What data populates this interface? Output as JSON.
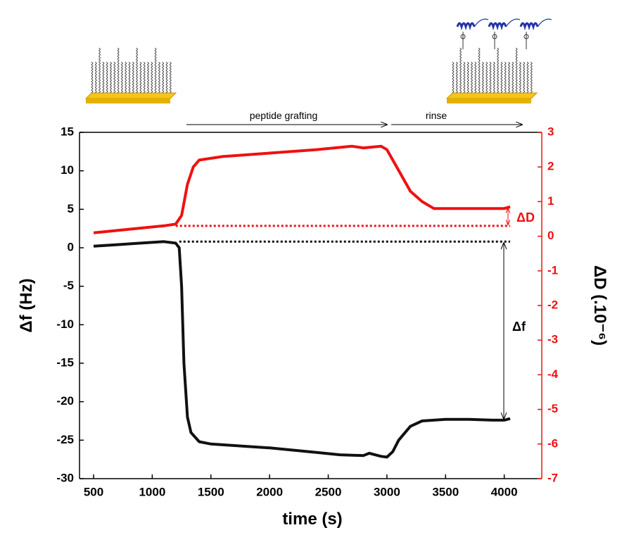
{
  "chart_data": {
    "type": "line",
    "x_label": "time (s)",
    "y_label": "Δf (Hz)",
    "y2_label": "ΔD (.10⁻⁶)",
    "xlim": [
      380,
      4320
    ],
    "xticks": [
      500,
      1000,
      1500,
      2000,
      2500,
      3000,
      3500,
      4000
    ],
    "ylim": [
      -30,
      15
    ],
    "yticks": [
      15,
      10,
      5,
      0,
      -5,
      -10,
      -15,
      -20,
      -25,
      -30
    ],
    "y2lim": [
      -7,
      3
    ],
    "y2ticks": [
      3,
      2,
      1,
      0,
      -1,
      -2,
      -3,
      -4,
      -5,
      -6,
      -7
    ],
    "y2_color": "#ee1111",
    "series": [
      {
        "color": "#111111",
        "x": [
          500,
          700,
          900,
          1100,
          1200,
          1230,
          1250,
          1270,
          1300,
          1330,
          1400,
          1500,
          1800,
          2000,
          2200,
          2400,
          2600,
          2800,
          2850,
          2950,
          3000,
          3050,
          3100,
          3200,
          3300,
          3500,
          3700,
          3900,
          4000,
          4050
        ],
        "values": [
          0.2,
          0.4,
          0.6,
          0.8,
          0.6,
          0,
          -5,
          -15,
          -22,
          -24,
          -25.2,
          -25.5,
          -25.8,
          -26,
          -26.3,
          -26.6,
          -26.9,
          -27,
          -26.7,
          -27.1,
          -27.2,
          -26.5,
          -25,
          -23.2,
          -22.5,
          -22.3,
          -22.3,
          -22.4,
          -22.4,
          -22.2
        ]
      },
      {
        "color": "#ee1111",
        "axis": "y2",
        "x": [
          500,
          800,
          1100,
          1200,
          1250,
          1300,
          1350,
          1400,
          1600,
          2000,
          2400,
          2700,
          2800,
          2950,
          3000,
          3100,
          3200,
          3300,
          3400,
          3600,
          3800,
          4000,
          4050
        ],
        "values": [
          0.1,
          0.2,
          0.3,
          0.35,
          0.6,
          1.5,
          2.0,
          2.2,
          2.3,
          2.4,
          2.5,
          2.6,
          2.55,
          2.6,
          2.5,
          1.9,
          1.3,
          1.0,
          0.8,
          0.8,
          0.8,
          0.8,
          0.85
        ]
      }
    ],
    "hlines": [
      {
        "value": 0.3,
        "axis": "y2",
        "color": "#ee1111",
        "x": [
          1200,
          4050
        ]
      },
      {
        "value": 0.8,
        "color": "#111111",
        "x": [
          1230,
          4050
        ]
      }
    ],
    "annotations": {
      "delta_d": "ΔD",
      "delta_f": "Δf",
      "grafting": "peptide grafting",
      "rinse": "rinse"
    }
  }
}
